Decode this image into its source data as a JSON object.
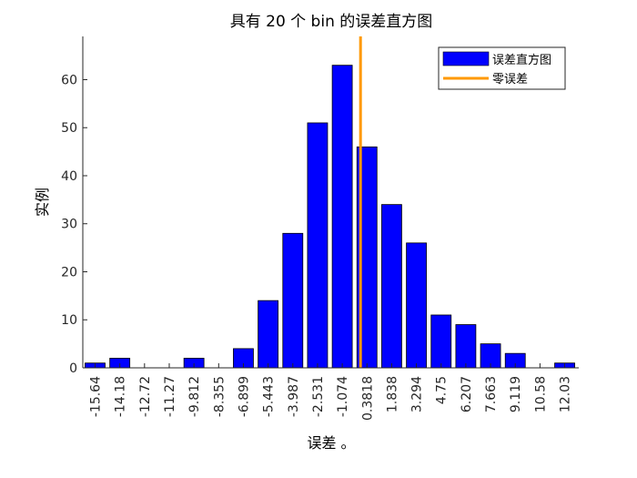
{
  "chart_data": {
    "type": "bar",
    "title": "具有 20 个 bin 的误差直方图",
    "xlabel": "误差 。",
    "ylabel": "实例",
    "categories": [
      "-15.64",
      "-14.18",
      "-12.72",
      "-11.27",
      "-9.812",
      "-8.355",
      "-6.899",
      "-5.443",
      "-3.987",
      "-2.531",
      "-1.074",
      "0.3818",
      "1.838",
      "3.294",
      "4.75",
      "6.207",
      "7.663",
      "9.119",
      "10.58",
      "12.03"
    ],
    "values": [
      1,
      2,
      0,
      0,
      2,
      0,
      4,
      14,
      28,
      51,
      63,
      46,
      34,
      26,
      11,
      9,
      5,
      3,
      0,
      1
    ],
    "ylim": [
      0,
      69
    ],
    "yticks": [
      "0",
      "10",
      "20",
      "30",
      "40",
      "50",
      "60"
    ],
    "zero_error_x": 0,
    "grid": false,
    "legend": {
      "placement": "top-right",
      "entries": [
        {
          "label": "误差直方图",
          "color": "#0000ff"
        },
        {
          "label": "零误差",
          "color": "#ff9900"
        }
      ]
    },
    "bar_color": "#0000ff",
    "zero_line_color": "#ff9900"
  }
}
